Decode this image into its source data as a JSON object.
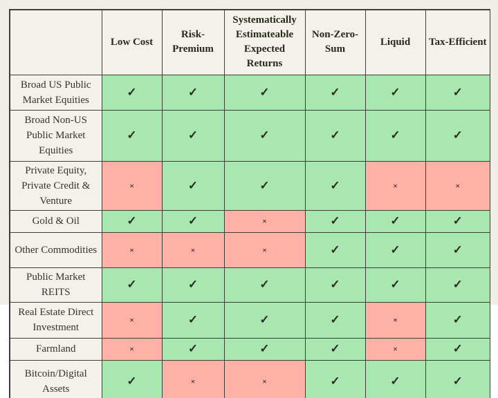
{
  "chart_data": {
    "type": "table",
    "title": "",
    "columns": [
      "Low Cost",
      "Risk-Premium",
      "Systematically Estimateable Expected Returns",
      "Non-Zero-Sum",
      "Liquid",
      "Tax-Efficient"
    ],
    "rows": [
      {
        "label": "Broad US Public Market Equities",
        "values": [
          "yes",
          "yes",
          "yes",
          "yes",
          "yes",
          "yes"
        ]
      },
      {
        "label": "Broad Non-US Public Market Equities",
        "values": [
          "yes",
          "yes",
          "yes",
          "yes",
          "yes",
          "yes"
        ]
      },
      {
        "label": "Private Equity, Private Credit & Venture",
        "values": [
          "no",
          "yes",
          "yes",
          "yes",
          "no",
          "no"
        ]
      },
      {
        "label": "Gold & Oil",
        "values": [
          "yes",
          "yes",
          "no",
          "yes",
          "yes",
          "yes"
        ]
      },
      {
        "label": "Other Commodities",
        "values": [
          "no",
          "no",
          "no",
          "yes",
          "yes",
          "yes"
        ]
      },
      {
        "label": "Public Market REITS",
        "values": [
          "yes",
          "yes",
          "yes",
          "yes",
          "yes",
          "yes"
        ]
      },
      {
        "label": "Real Estate Direct Investment",
        "values": [
          "no",
          "yes",
          "yes",
          "yes",
          "no",
          "yes"
        ]
      },
      {
        "label": "Farmland",
        "values": [
          "no",
          "yes",
          "yes",
          "yes",
          "no",
          "yes"
        ]
      },
      {
        "label": "Bitcoin/Digital Assets",
        "values": [
          "yes",
          "no",
          "no",
          "yes",
          "yes",
          "yes"
        ]
      }
    ],
    "legend": {
      "yes_glyph": "✓",
      "no_glyph": "×"
    },
    "colors": {
      "yes_bg": "#a9e7b1",
      "no_bg": "#ffb1a8",
      "header_bg": "#f4f1ea",
      "page_bg": "#f1eee8",
      "page_bg_bottom": "#ffffff",
      "border": "#3e3e38",
      "header_text": "#262a1d",
      "label_text": "#363429",
      "glyph_color": "#2c2c24"
    },
    "layout": {
      "grid": "on",
      "check_cells_color_meaning": "green = criterion satisfied, red = criterion not satisfied"
    }
  }
}
